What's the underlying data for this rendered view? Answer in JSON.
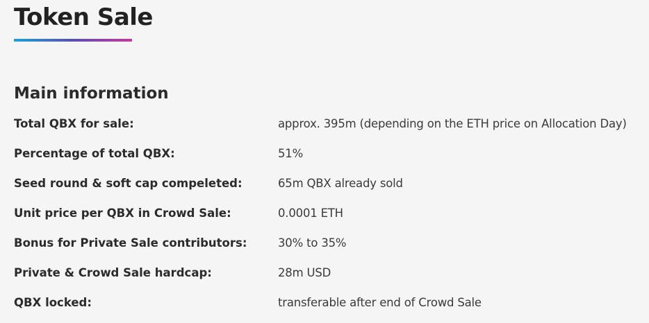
{
  "page": {
    "title": "Token Sale",
    "accent_gradient": [
      "#1f9fd8",
      "#5a4fb0",
      "#c8379a"
    ]
  },
  "main_information": {
    "heading": "Main information",
    "rows": [
      {
        "label": "Total QBX for sale:",
        "value": "approx. 395m (depending on the ETH price on Allocation Day)"
      },
      {
        "label": "Percentage of total QBX:",
        "value": "51%"
      },
      {
        "label": "Seed round & soft cap compeleted:",
        "value": "65m QBX already sold"
      },
      {
        "label": "Unit price per QBX in Crowd Sale:",
        "value": "0.0001 ETH"
      },
      {
        "label": "Bonus for Private Sale contributors:",
        "value": "30% to 35%"
      },
      {
        "label": "Private & Crowd Sale hardcap:",
        "value": "28m USD"
      },
      {
        "label": "QBX locked:",
        "value": "transferable after end of Crowd Sale"
      }
    ]
  }
}
